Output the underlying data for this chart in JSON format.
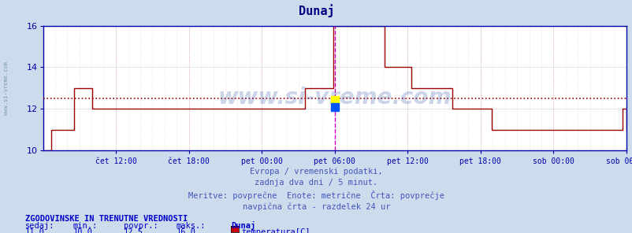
{
  "title": "Dunaj",
  "title_color": "#000080",
  "bg_color": "#ccdcec",
  "plot_bg_color": "#ffffff",
  "line_color": "#990000",
  "avg_line_color": "#990000",
  "avg_line_value": 12.5,
  "vline_color": "#cc00cc",
  "axis_color": "#0000aa",
  "tick_color": "#000080",
  "ylim": [
    10,
    16
  ],
  "yticks": [
    10,
    12,
    14,
    16
  ],
  "xtick_labels": [
    "čet 12:00",
    "čet 18:00",
    "pet 00:00",
    "pet 06:00",
    "pet 12:00",
    "pet 18:00",
    "sob 00:00",
    "sob 06:00"
  ],
  "xtick_positions": [
    0.125,
    0.25,
    0.375,
    0.5,
    0.625,
    0.75,
    0.875,
    1.0
  ],
  "watermark": "www.si-vreme.com",
  "subtitle1": "Evropa / vremenski podatki,",
  "subtitle2": "zadnja dva dni / 5 minut.",
  "subtitle3": "Meritve: povprečne  Enote: metrične  Črta: povprečje",
  "subtitle4": "navpična črta - razdelek 24 ur",
  "legend_title": "ZGODOVINSKE IN TRENUTNE VREDNOSTI",
  "legend_labels": [
    "sedaj:",
    "min.:",
    "povpr.:",
    "maks.:"
  ],
  "legend_values": [
    "11,0",
    "10,0",
    "12,5",
    "16,0"
  ],
  "legend_name": "Dunaj",
  "legend_param": "temperatura[C]",
  "legend_color": "#cc0000",
  "vline_x": 0.5,
  "temperature_data": [
    10.0,
    10.0,
    10.0,
    10.0,
    11.0,
    11.0,
    11.0,
    11.0,
    11.0,
    11.0,
    11.0,
    11.0,
    11.0,
    11.0,
    11.0,
    13.0,
    13.0,
    13.0,
    13.0,
    13.0,
    13.0,
    13.0,
    13.0,
    13.0,
    12.0,
    12.0,
    12.0,
    12.0,
    12.0,
    12.0,
    12.0,
    12.0,
    12.0,
    12.0,
    12.0,
    12.0,
    12.0,
    12.0,
    12.0,
    12.0,
    12.0,
    12.0,
    12.0,
    12.0,
    12.0,
    12.0,
    12.0,
    12.0,
    12.0,
    12.0,
    12.0,
    12.0,
    12.0,
    12.0,
    12.0,
    12.0,
    12.0,
    12.0,
    12.0,
    12.0,
    12.0,
    12.0,
    12.0,
    12.0,
    12.0,
    12.0,
    12.0,
    12.0,
    12.0,
    12.0,
    12.0,
    12.0,
    12.0,
    12.0,
    12.0,
    12.0,
    12.0,
    12.0,
    12.0,
    12.0,
    12.0,
    12.0,
    12.0,
    12.0,
    12.0,
    12.0,
    12.0,
    12.0,
    12.0,
    12.0,
    12.0,
    12.0,
    12.0,
    12.0,
    12.0,
    12.0,
    12.0,
    12.0,
    12.0,
    12.0,
    12.0,
    12.0,
    12.0,
    12.0,
    12.0,
    12.0,
    12.0,
    12.0,
    12.0,
    12.0,
    12.0,
    12.0,
    12.0,
    12.0,
    12.0,
    12.0,
    12.0,
    12.0,
    12.0,
    12.0,
    12.0,
    12.0,
    12.0,
    12.0,
    12.0,
    12.0,
    12.0,
    12.0,
    13.0,
    13.0,
    13.0,
    13.0,
    13.0,
    13.0,
    13.0,
    13.0,
    13.0,
    13.0,
    13.0,
    13.0,
    13.0,
    13.0,
    16.0,
    16.0,
    16.0,
    16.0,
    16.0,
    16.0,
    16.0,
    16.0,
    16.0,
    16.0,
    16.0,
    16.0,
    16.0,
    16.0,
    16.0,
    16.0,
    16.0,
    16.0,
    16.0,
    16.0,
    16.0,
    16.0,
    16.0,
    16.0,
    16.0,
    14.0,
    14.0,
    14.0,
    14.0,
    14.0,
    14.0,
    14.0,
    14.0,
    14.0,
    14.0,
    14.0,
    14.0,
    14.0,
    13.0,
    13.0,
    13.0,
    13.0,
    13.0,
    13.0,
    13.0,
    13.0,
    13.0,
    13.0,
    13.0,
    13.0,
    13.0,
    13.0,
    13.0,
    13.0,
    13.0,
    13.0,
    13.0,
    13.0,
    12.0,
    12.0,
    12.0,
    12.0,
    12.0,
    12.0,
    12.0,
    12.0,
    12.0,
    12.0,
    12.0,
    12.0,
    12.0,
    12.0,
    12.0,
    12.0,
    12.0,
    12.0,
    12.0,
    11.0,
    11.0,
    11.0,
    11.0,
    11.0,
    11.0,
    11.0,
    11.0,
    11.0,
    11.0,
    11.0,
    11.0,
    11.0,
    11.0,
    11.0,
    11.0,
    11.0,
    11.0,
    11.0,
    11.0,
    11.0,
    11.0,
    11.0,
    11.0,
    11.0,
    11.0,
    11.0,
    11.0,
    11.0,
    11.0,
    11.0,
    11.0,
    11.0,
    11.0,
    11.0,
    11.0,
    11.0,
    11.0,
    11.0,
    11.0,
    11.0,
    11.0,
    11.0,
    11.0,
    11.0,
    11.0,
    11.0,
    11.0,
    11.0,
    11.0,
    11.0,
    11.0,
    11.0,
    11.0,
    11.0,
    11.0,
    11.0,
    11.0,
    11.0,
    11.0,
    11.0,
    11.0,
    11.0,
    11.0,
    12.0,
    12.0,
    11.0
  ]
}
